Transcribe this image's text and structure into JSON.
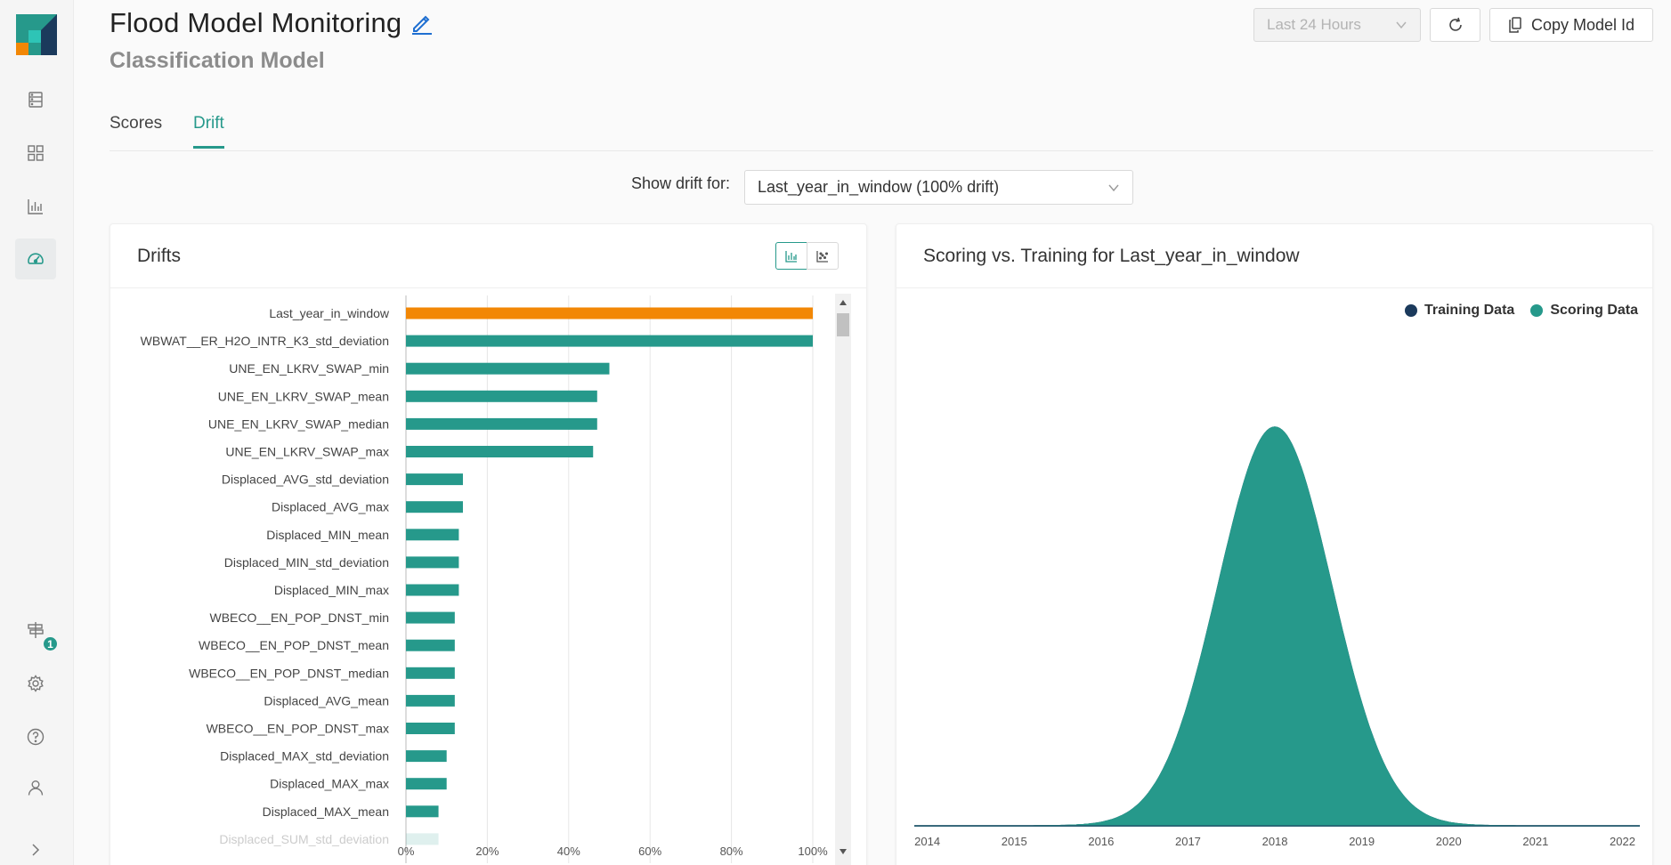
{
  "header": {
    "title": "Flood Model Monitoring",
    "subtitle": "Classification Model",
    "time_range": "Last 24 Hours",
    "copy_label": "Copy Model Id"
  },
  "tabs": [
    {
      "label": "Scores",
      "active": false
    },
    {
      "label": "Drift",
      "active": true
    }
  ],
  "sidebar": {
    "badge_count": "1"
  },
  "drift_selector": {
    "label": "Show drift for:",
    "value": "Last_year_in_window (100% drift)"
  },
  "drifts_card": {
    "title": "Drifts"
  },
  "scoring_card": {
    "title": "Scoring vs. Training for Last_year_in_window"
  },
  "colors": {
    "accent": "#26998b",
    "highlight": "#f28705",
    "training": "#1b3a5c"
  },
  "chart_data": [
    {
      "type": "bar",
      "orientation": "horizontal",
      "title": "Drifts",
      "categories": [
        "Last_year_in_window",
        "WBWAT__ER_H2O_INTR_K3_std_deviation",
        "UNE_EN_LKRV_SWAP_min",
        "UNE_EN_LKRV_SWAP_mean",
        "UNE_EN_LKRV_SWAP_median",
        "UNE_EN_LKRV_SWAP_max",
        "Displaced_AVG_std_deviation",
        "Displaced_AVG_max",
        "Displaced_MIN_mean",
        "Displaced_MIN_std_deviation",
        "Displaced_MIN_max",
        "WBECO__EN_POP_DNST_min",
        "WBECO__EN_POP_DNST_mean",
        "WBECO__EN_POP_DNST_median",
        "Displaced_AVG_mean",
        "WBECO__EN_POP_DNST_max",
        "Displaced_MAX_std_deviation",
        "Displaced_MAX_max",
        "Displaced_MAX_mean",
        "Displaced_SUM_std_deviation"
      ],
      "values": [
        100,
        100,
        50,
        47,
        47,
        46,
        14,
        14,
        13,
        13,
        13,
        12,
        12,
        12,
        12,
        12,
        10,
        10,
        8,
        8
      ],
      "xlim": [
        0,
        100
      ],
      "xticks": [
        "0%",
        "20%",
        "40%",
        "60%",
        "80%",
        "100%"
      ],
      "grid": true
    },
    {
      "type": "area",
      "title": "Scoring vs. Training for Last_year_in_window",
      "series": [
        {
          "name": "Training Data",
          "mean": 2018,
          "std": 0.65
        },
        {
          "name": "Scoring Data",
          "mean": 2018,
          "std": 0.65
        }
      ],
      "xticks": [
        "2014",
        "2015",
        "2016",
        "2017",
        "2018",
        "2019",
        "2020",
        "2021",
        "2022"
      ],
      "xlim": [
        2013.85,
        2022.2
      ],
      "legend": "top-right"
    }
  ]
}
